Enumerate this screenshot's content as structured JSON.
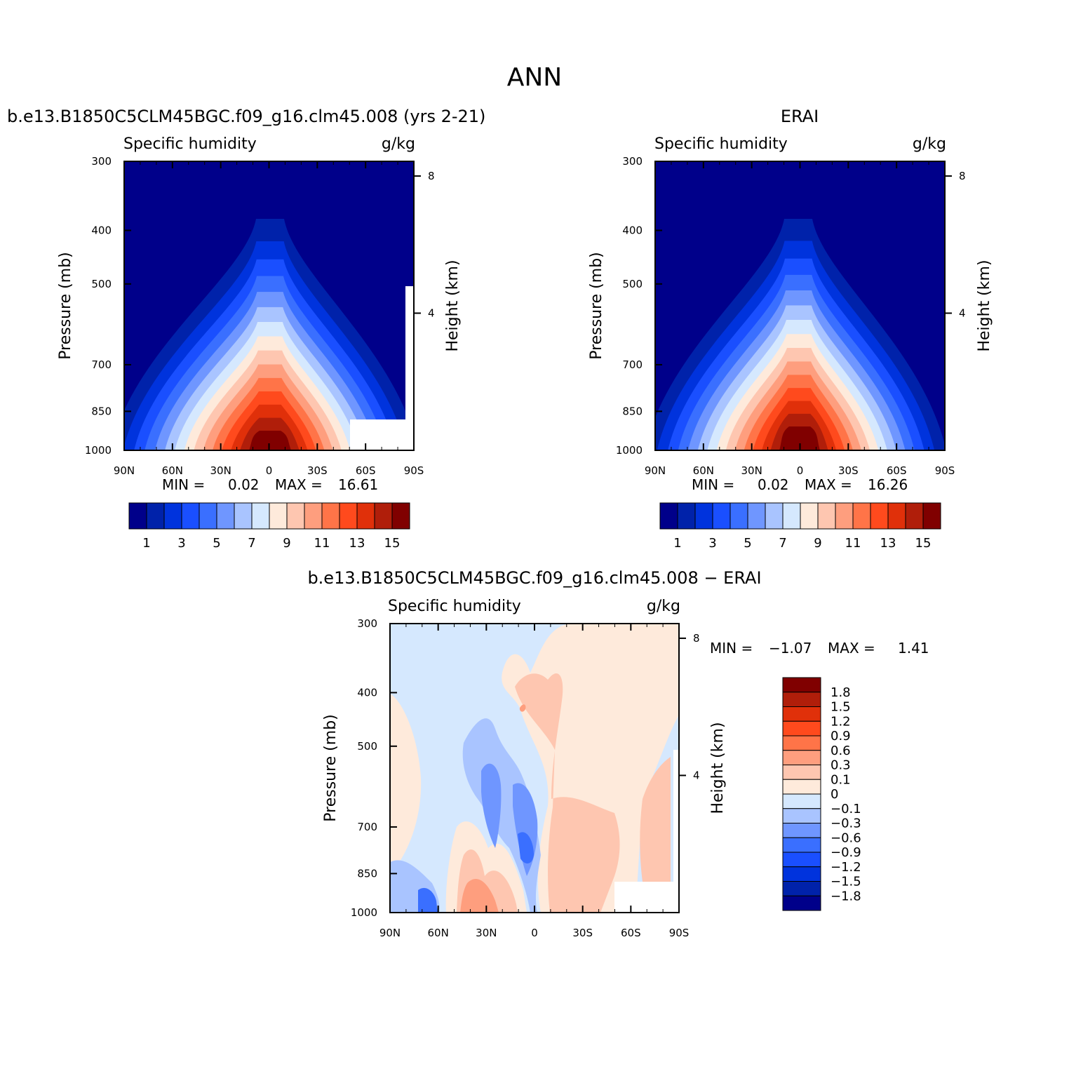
{
  "page_title": "ANN",
  "chart_data": [
    {
      "type": "heatmap",
      "id": "model",
      "title": "b.e13.B1850C5CLM45BGC.f09_g16.clm45.008 (yrs 2-21)",
      "left_label": "Specific humidity",
      "right_label": "g/kg",
      "ylabel": "Pressure (mb)",
      "ylabel_right": "Height (km)",
      "x_ticks": [
        "90N",
        "60N",
        "30N",
        "0",
        "30S",
        "60S",
        "90S"
      ],
      "y_ticks": [
        "300",
        "400",
        "500",
        "700",
        "850",
        "1000"
      ],
      "y_right_ticks": [
        "8",
        "4"
      ],
      "stats": {
        "min_label": "MIN =",
        "min": "0.02",
        "max_label": "MAX =",
        "max": "16.61"
      },
      "colorbar_ticks": [
        "1",
        "3",
        "5",
        "7",
        "9",
        "11",
        "13",
        "15"
      ],
      "colorbar_levels": [
        1,
        2,
        3,
        4,
        5,
        6,
        7,
        8,
        9,
        10,
        11,
        12,
        13,
        14,
        15
      ],
      "approx_peak": 16.61
    },
    {
      "type": "heatmap",
      "id": "obs",
      "title": "ERAI",
      "left_label": "Specific humidity",
      "right_label": "g/kg",
      "ylabel": "Pressure (mb)",
      "ylabel_right": "Height (km)",
      "x_ticks": [
        "90N",
        "60N",
        "30N",
        "0",
        "30S",
        "60S",
        "90S"
      ],
      "y_ticks": [
        "300",
        "400",
        "500",
        "700",
        "850",
        "1000"
      ],
      "y_right_ticks": [
        "8",
        "4"
      ],
      "stats": {
        "min_label": "MIN =",
        "min": "0.02",
        "max_label": "MAX =",
        "max": "16.26"
      },
      "colorbar_ticks": [
        "1",
        "3",
        "5",
        "7",
        "9",
        "11",
        "13",
        "15"
      ],
      "colorbar_levels": [
        1,
        2,
        3,
        4,
        5,
        6,
        7,
        8,
        9,
        10,
        11,
        12,
        13,
        14,
        15
      ],
      "approx_peak": 16.26
    },
    {
      "type": "heatmap",
      "id": "diff",
      "title": "b.e13.B1850C5CLM45BGC.f09_g16.clm45.008 − ERAI",
      "left_label": "Specific humidity",
      "right_label": "g/kg",
      "ylabel": "Pressure (mb)",
      "ylabel_right": "Height (km)",
      "x_ticks": [
        "90N",
        "60N",
        "30N",
        "0",
        "30S",
        "60S",
        "90S"
      ],
      "y_ticks": [
        "300",
        "400",
        "500",
        "700",
        "850",
        "1000"
      ],
      "y_right_ticks": [
        "8",
        "4"
      ],
      "stats": {
        "min_label": "MIN =",
        "min": "−1.07",
        "max_label": "MAX =",
        "max": "1.41"
      },
      "colorbar_labels": [
        "1.8",
        "1.5",
        "1.2",
        "0.9",
        "0.6",
        "0.3",
        "0.1",
        "0",
        "−0.1",
        "−0.3",
        "−0.6",
        "−0.9",
        "−1.2",
        "−1.5",
        "−1.8"
      ],
      "colorbar_levels": [
        -1.8,
        -1.5,
        -1.2,
        -0.9,
        -0.6,
        -0.3,
        -0.1,
        0,
        0.1,
        0.3,
        0.6,
        0.9,
        1.2,
        1.5,
        1.8
      ]
    }
  ],
  "colors": {
    "seq16": [
      "#00008a",
      "#0022aa",
      "#0033dd",
      "#1a4fff",
      "#3a6fff",
      "#6f96ff",
      "#a9c4ff",
      "#d5e8fe",
      "#feeadb",
      "#fec6b0",
      "#fe9e7e",
      "#ff7448",
      "#ff4a1d",
      "#e0300a",
      "#b01e0a",
      "#800000"
    ],
    "div16": [
      "#00008a",
      "#0022aa",
      "#0033dd",
      "#1a4fff",
      "#3a6fff",
      "#6f96ff",
      "#a9c4ff",
      "#d5e8fe",
      "#feeadb",
      "#fec6b0",
      "#fe9e7e",
      "#ff7448",
      "#ff4a1d",
      "#e0300a",
      "#b01e0a",
      "#800000"
    ]
  }
}
